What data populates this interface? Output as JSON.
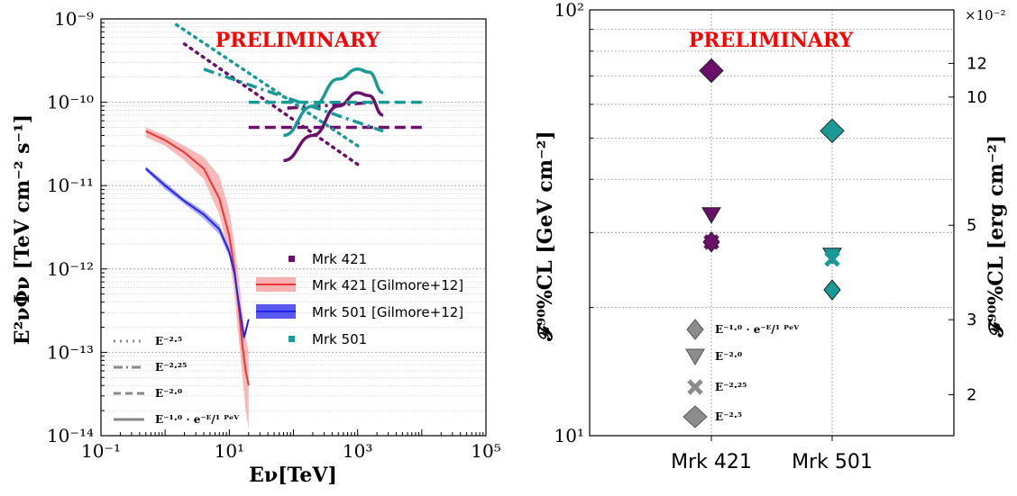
{
  "chart_data": [
    {
      "type": "line",
      "title": "",
      "annotation": "PRELIMINARY",
      "xlabel": "Eν[TeV]",
      "ylabel": "E²νΦν [TeV cm⁻² s⁻¹]",
      "xscale": "log",
      "yscale": "log",
      "xlim": [
        0.1,
        100000
      ],
      "ylim": [
        1e-14,
        1e-09
      ],
      "x_tick_labels": [
        "10⁻¹",
        "10¹",
        "10³",
        "10⁵"
      ],
      "y_tick_labels": [
        "10⁻⁹",
        "10⁻¹⁰",
        "10⁻¹¹",
        "10⁻¹²",
        "10⁻¹³",
        "10⁻¹⁴"
      ],
      "grid": true,
      "legend_position": "center-right",
      "legend_entries": [
        "Mrk 421",
        "Mrk 421 [Gilmore+12]",
        "Mrk 501 [Gilmore+12]",
        "Mrk 501"
      ],
      "linestyle_legend": [
        "E⁻²·⁵",
        "E⁻²·²⁵",
        "E⁻²·⁰",
        "E⁻¹·⁰ · e⁻ᴱ/¹ ᴾᵉⱽ"
      ],
      "colors": {
        "mrk421": "#6b0f6b",
        "mrk501": "#1a9a96",
        "mrk421_gilmore": "#ee3333",
        "mrk501_gilmore": "#2222ee"
      },
      "series": [
        {
          "name": "Mrk 421 [Gilmore+12]",
          "x": [
            0.5,
            1,
            2,
            4,
            7,
            10,
            12,
            14,
            16,
            18,
            20
          ],
          "values": [
            4.5e-11,
            3.5e-11,
            2.5e-11,
            1.6e-11,
            7e-12,
            2.5e-12,
            1e-12,
            3.5e-13,
            1.2e-13,
            6e-14,
            4e-14
          ],
          "band_low": [
            3.8e-11,
            3e-11,
            2e-11,
            1.2e-11,
            4.5e-12,
            1.5e-12,
            5e-13,
            1.5e-13,
            5e-14,
            2e-14,
            1.2e-14
          ],
          "band_high": [
            5e-11,
            4e-11,
            3e-11,
            2.2e-11,
            1.3e-11,
            5e-12,
            2e-12,
            8e-13,
            3e-13,
            1.5e-13,
            1e-13
          ]
        },
        {
          "name": "Mrk 501 [Gilmore+12]",
          "x": [
            0.5,
            1,
            2,
            4,
            7,
            10,
            12,
            14,
            17,
            20
          ],
          "values": [
            1.6e-11,
            1e-11,
            6.5e-12,
            4.5e-12,
            3e-12,
            1.6e-12,
            9e-13,
            4e-13,
            1.5e-13,
            2.5e-13
          ],
          "band_low": [
            1.5e-11,
            9e-12,
            6e-12,
            4e-12,
            2.6e-12,
            1.4e-12,
            8e-13,
            3.5e-13,
            1.3e-13,
            2.5e-13
          ],
          "band_high": [
            1.7e-11,
            1.1e-11,
            7e-12,
            5e-12,
            3.4e-12,
            1.8e-12,
            1e-12,
            4.5e-13,
            1.7e-13,
            2.5e-13
          ]
        },
        {
          "name": "Mrk 421 E-2.5",
          "x": [
            2,
            1000
          ],
          "values": [
            5e-10,
            1.8e-11
          ],
          "style": "dotted",
          "color": "mrk421"
        },
        {
          "name": "Mrk 421 E-2.25",
          "x": [
            80,
            2000
          ],
          "values": [
            8.5e-11,
            1e-10
          ],
          "style": "dashdot",
          "color": "mrk421"
        },
        {
          "name": "Mrk 421 E-2.0",
          "x": [
            20,
            10000
          ],
          "values": [
            5e-11,
            5e-11
          ],
          "style": "dashed",
          "color": "mrk421"
        },
        {
          "name": "Mrk 421 E-1.0 cutoff",
          "x": [
            70,
            200,
            500,
            1000,
            1500,
            2500
          ],
          "values": [
            2e-11,
            4e-11,
            9e-11,
            1.3e-10,
            1.2e-10,
            7e-11
          ],
          "style": "solid",
          "color": "mrk421"
        },
        {
          "name": "Mrk 501 E-2.5",
          "x": [
            1.5,
            1000
          ],
          "values": [
            8.5e-10,
            3e-11
          ],
          "style": "dotted",
          "color": "mrk501"
        },
        {
          "name": "Mrk 501 E-2.25",
          "x": [
            4,
            2500
          ],
          "values": [
            2.5e-10,
            4.5e-11
          ],
          "style": "dashdot",
          "color": "mrk501"
        },
        {
          "name": "Mrk 501 E-2.0",
          "x": [
            20,
            10000
          ],
          "values": [
            1e-10,
            1e-10
          ],
          "style": "dashed",
          "color": "mrk501"
        },
        {
          "name": "Mrk 501 E-1.0 cutoff",
          "x": [
            70,
            200,
            500,
            1000,
            1500,
            2500
          ],
          "values": [
            4e-11,
            9e-11,
            1.9e-10,
            2.5e-10,
            2.3e-10,
            1.3e-10
          ],
          "style": "solid",
          "color": "mrk501"
        }
      ]
    },
    {
      "type": "scatter",
      "title": "",
      "annotation": "PRELIMINARY",
      "categories": [
        "Mrk 421",
        "Mrk 501"
      ],
      "ylabel": "𝓕⁹⁰%CL [GeV cm⁻²]",
      "ylabel_right": "𝓕⁹⁰%CL [erg cm⁻²]",
      "yscale": "log",
      "ylim": [
        10,
        100
      ],
      "y_tick_labels": [
        "10¹",
        "10²"
      ],
      "right_axis_multiplier": "×10⁻²",
      "right_tick_labels": [
        "12",
        "10",
        "5",
        "3",
        "2"
      ],
      "right_tick_values": [
        0.12,
        0.1,
        0.05,
        0.03,
        0.02
      ],
      "grid": true,
      "legend_position": "lower-center",
      "legend_entries": [
        "E⁻¹·⁰ · e⁻ᴱ/¹ ᴾᵉⱽ",
        "E⁻²·⁰",
        "E⁻²·²⁵",
        "E⁻²·⁵"
      ],
      "colors": {
        "mrk421": "#6b0f6b",
        "mrk501": "#1a9a96",
        "legend_marker": "#8c8c8c"
      },
      "series": [
        {
          "name": "E-2.5",
          "marker": "diamond-large",
          "values": [
            72,
            52
          ]
        },
        {
          "name": "E-2.0",
          "marker": "triangle-down",
          "values": [
            33,
            26.5
          ]
        },
        {
          "name": "E-2.25",
          "marker": "x",
          "values": [
            28.5,
            26
          ]
        },
        {
          "name": "E-1.0 cutoff",
          "marker": "diamond-small",
          "values": [
            28.5,
            22
          ]
        }
      ]
    }
  ]
}
